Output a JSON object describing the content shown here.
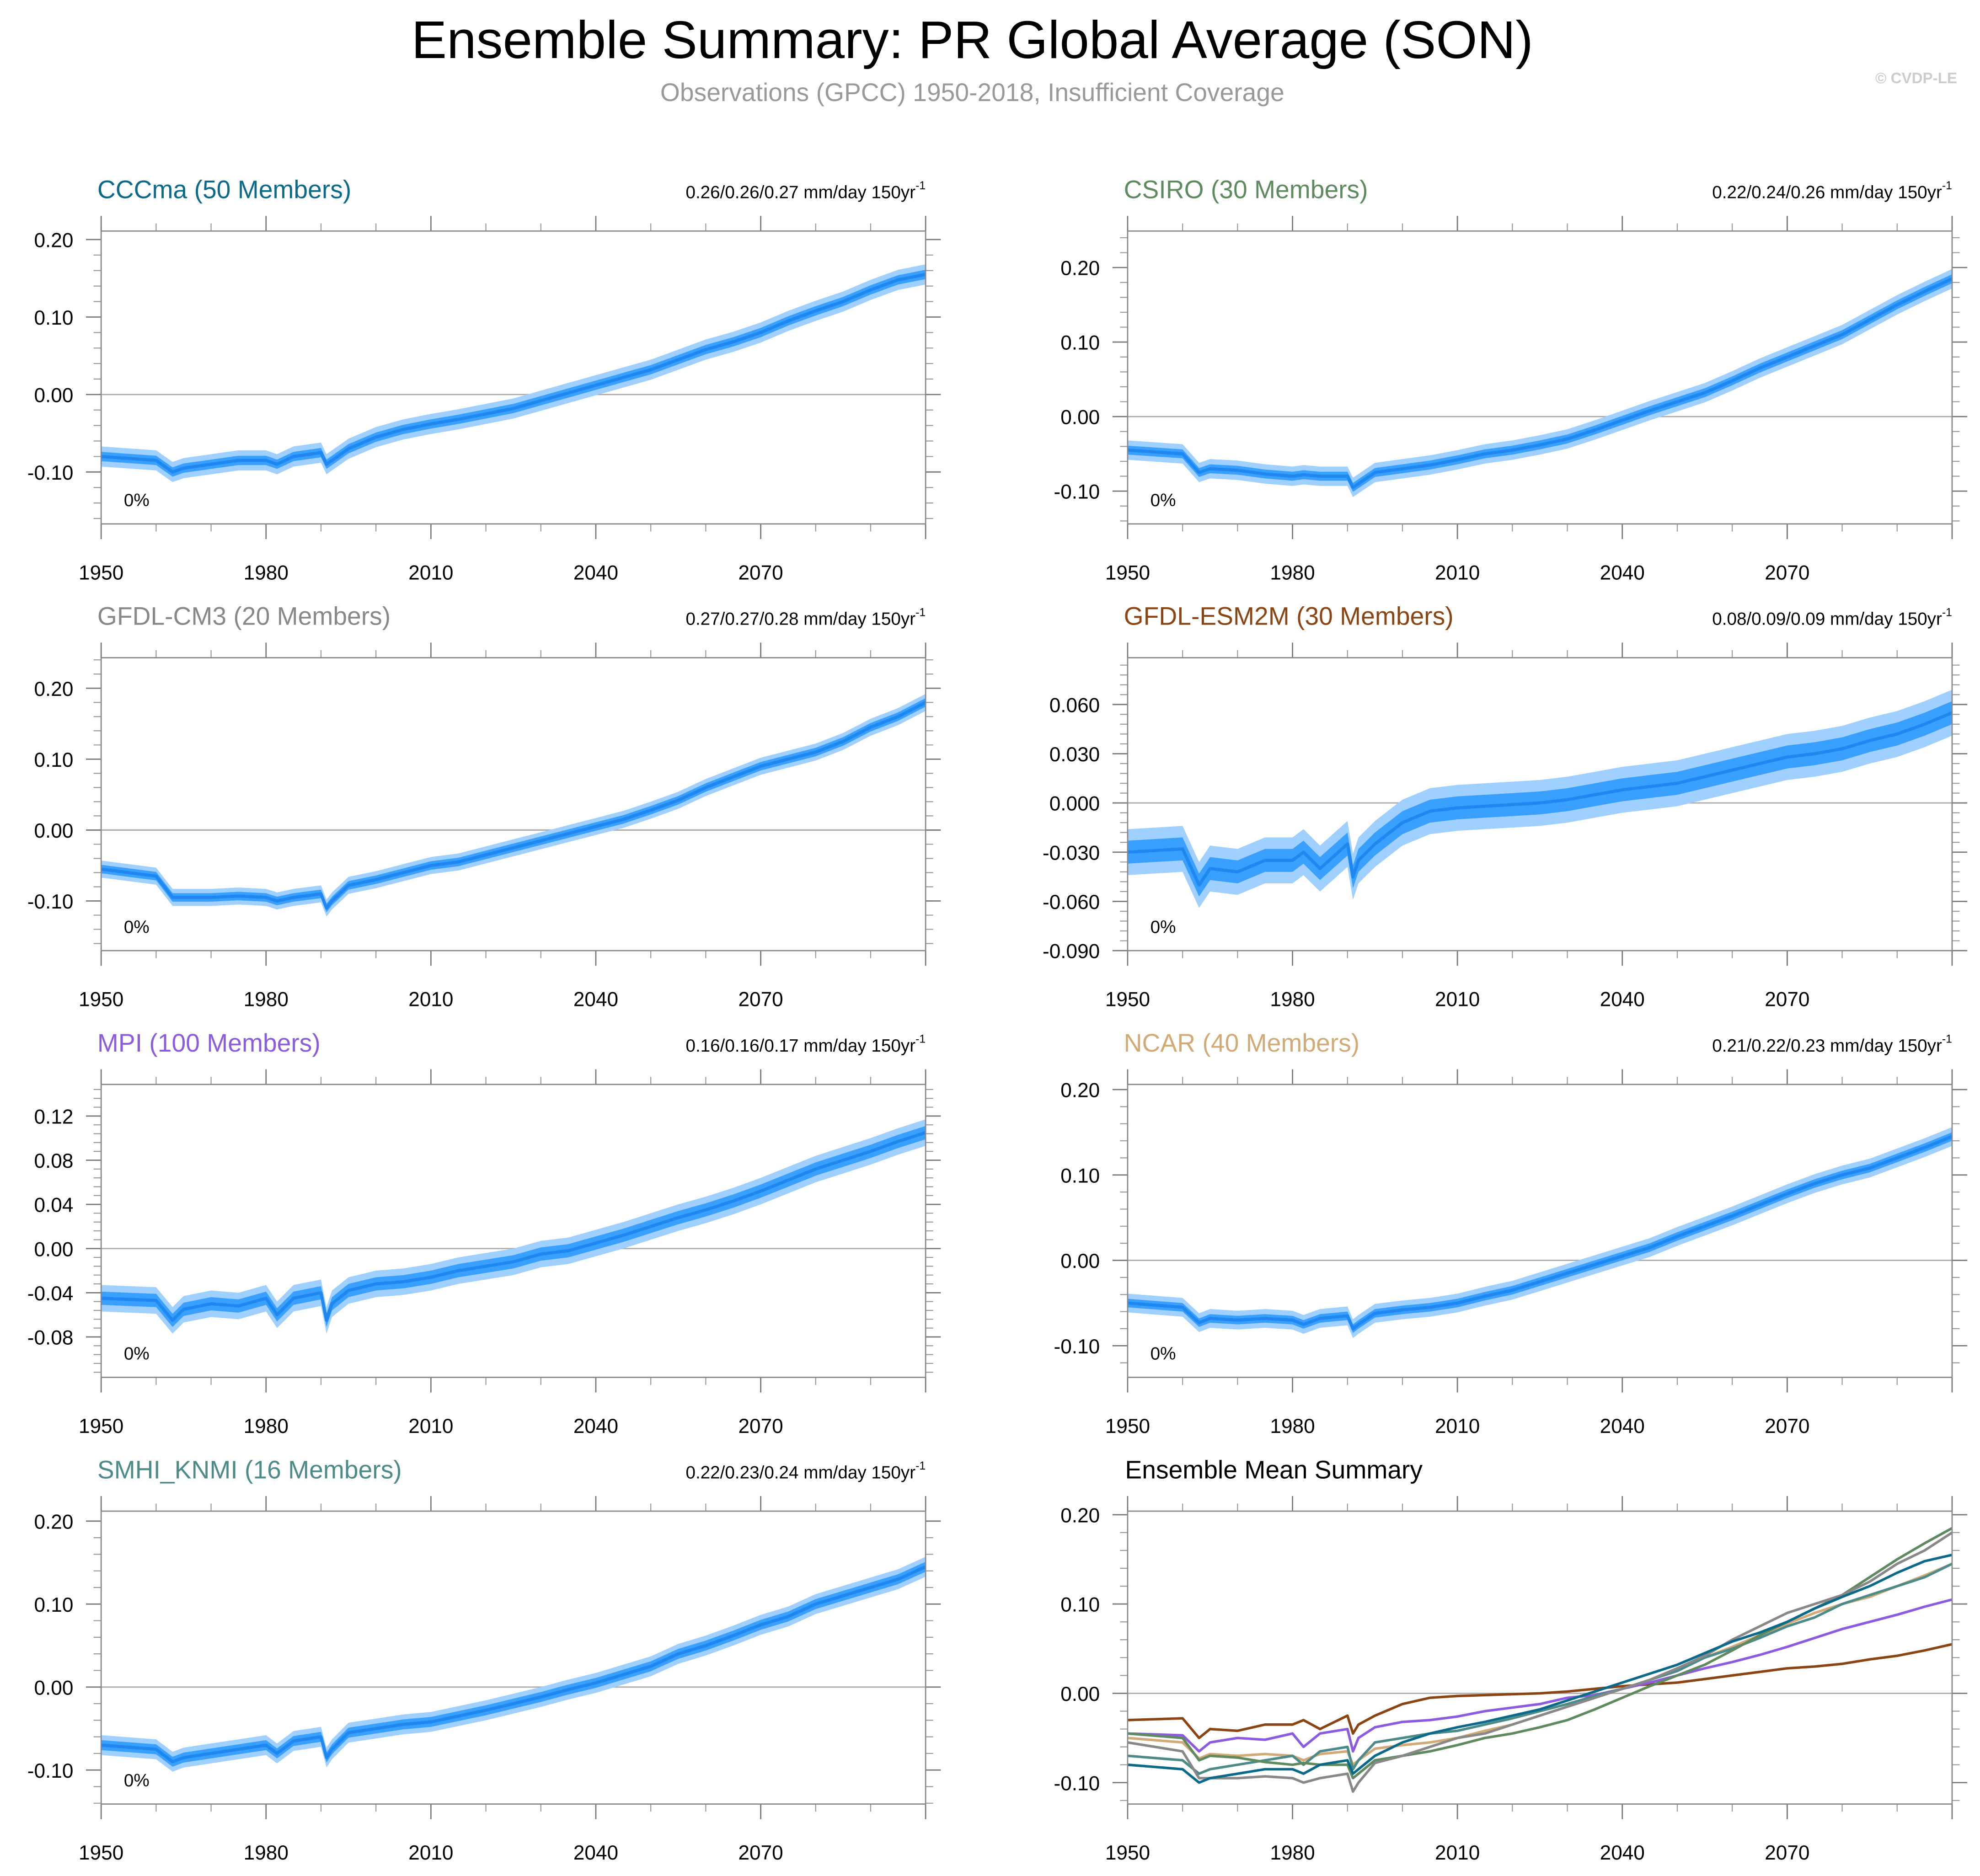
{
  "title": "Ensemble Summary: PR Global Average (SON)",
  "subtitle": "Observations (GPCC) 1950-2018, Insufficient Coverage",
  "watermark": "© CVDP-LE",
  "colors": {
    "outer_band": "#a0d0ff",
    "inner_band": "#3aa0ff",
    "mean_line": "#1e88f0",
    "zero_line": "#aaaaaa",
    "frame": "#888888"
  },
  "chart_data": {
    "type": "line",
    "x_tick_labels": [
      "1950",
      "1980",
      "2010",
      "2040",
      "2070"
    ],
    "xlim": [
      1950,
      2100
    ],
    "grid": false,
    "years": [
      1950,
      1960,
      1963,
      1965,
      1970,
      1975,
      1980,
      1982,
      1985,
      1990,
      1991,
      1992,
      1995,
      2000,
      2005,
      2010,
      2015,
      2020,
      2025,
      2030,
      2035,
      2040,
      2045,
      2050,
      2055,
      2060,
      2065,
      2070,
      2075,
      2080,
      2085,
      2090,
      2095,
      2100
    ],
    "panels": [
      {
        "title": "CCCma (50 Members)",
        "color": "#0b6a8a",
        "trend": "0.26/0.26/0.27 mm/day 150yr",
        "trend_exp": "-1",
        "pct": "0%",
        "ylim": [
          -0.167,
          0.211
        ],
        "y_ticks": [
          0.2,
          0.1,
          0.0,
          -0.1
        ],
        "y_tick_labels": [
          "0.20",
          "0.10",
          "0.00",
          "-0.10"
        ],
        "spread_inner": 0.006,
        "spread_outer": 0.013,
        "mean": [
          -0.08,
          -0.085,
          -0.1,
          -0.095,
          -0.09,
          -0.085,
          -0.085,
          -0.09,
          -0.08,
          -0.075,
          -0.09,
          -0.085,
          -0.07,
          -0.055,
          -0.045,
          -0.038,
          -0.032,
          -0.025,
          -0.018,
          -0.008,
          0.002,
          0.012,
          0.022,
          0.032,
          0.045,
          0.058,
          0.068,
          0.08,
          0.095,
          0.108,
          0.12,
          0.135,
          0.148,
          0.155
        ]
      },
      {
        "title": "CSIRO (30 Members)",
        "color": "#5f8a5f",
        "trend": "0.22/0.24/0.26 mm/day 150yr",
        "trend_exp": "-1",
        "pct": "0%",
        "ylim": [
          -0.144,
          0.249
        ],
        "y_ticks": [
          0.2,
          0.1,
          0.0,
          -0.1
        ],
        "y_tick_labels": [
          "0.20",
          "0.10",
          "0.00",
          "-0.10"
        ],
        "spread_inner": 0.006,
        "spread_outer": 0.013,
        "mean": [
          -0.045,
          -0.05,
          -0.075,
          -0.07,
          -0.072,
          -0.077,
          -0.08,
          -0.078,
          -0.08,
          -0.08,
          -0.095,
          -0.09,
          -0.075,
          -0.07,
          -0.065,
          -0.058,
          -0.05,
          -0.045,
          -0.038,
          -0.03,
          -0.018,
          -0.005,
          0.008,
          0.02,
          0.032,
          0.048,
          0.065,
          0.08,
          0.095,
          0.11,
          0.13,
          0.15,
          0.168,
          0.185
        ]
      },
      {
        "title": "GFDL-CM3 (20 Members)",
        "color": "#888888",
        "trend": "0.27/0.27/0.28 mm/day 150yr",
        "trend_exp": "-1",
        "pct": "0%",
        "ylim": [
          -0.17,
          0.243
        ],
        "y_ticks": [
          0.2,
          0.1,
          0.0,
          -0.1
        ],
        "y_tick_labels": [
          "0.20",
          "0.10",
          "0.00",
          "-0.10"
        ],
        "spread_inner": 0.006,
        "spread_outer": 0.012,
        "mean": [
          -0.055,
          -0.065,
          -0.095,
          -0.095,
          -0.095,
          -0.093,
          -0.095,
          -0.1,
          -0.095,
          -0.09,
          -0.11,
          -0.1,
          -0.078,
          -0.07,
          -0.06,
          -0.05,
          -0.045,
          -0.035,
          -0.025,
          -0.015,
          -0.005,
          0.005,
          0.015,
          0.028,
          0.042,
          0.06,
          0.075,
          0.09,
          0.1,
          0.11,
          0.125,
          0.145,
          0.16,
          0.18
        ]
      },
      {
        "title": "GFDL-ESM2M (30 Members)",
        "color": "#8b4513",
        "trend": "0.08/0.09/0.09 mm/day 150yr",
        "trend_exp": "-1",
        "pct": "0%",
        "ylim": [
          -0.09,
          0.0885
        ],
        "y_ticks": [
          0.06,
          0.03,
          0.0,
          -0.03,
          -0.06,
          -0.09
        ],
        "y_tick_labels": [
          "0.060",
          "0.030",
          "0.000",
          "-0.030",
          "-0.060",
          "-0.090"
        ],
        "spread_inner": 0.007,
        "spread_outer": 0.014,
        "mean": [
          -0.03,
          -0.028,
          -0.05,
          -0.04,
          -0.042,
          -0.035,
          -0.035,
          -0.03,
          -0.04,
          -0.025,
          -0.045,
          -0.035,
          -0.025,
          -0.012,
          -0.005,
          -0.003,
          -0.002,
          -0.001,
          0.0,
          0.002,
          0.005,
          0.008,
          0.01,
          0.012,
          0.016,
          0.02,
          0.024,
          0.028,
          0.03,
          0.033,
          0.038,
          0.042,
          0.048,
          0.055
        ]
      },
      {
        "title": "MPI (100 Members)",
        "color": "#8c5ce0",
        "trend": "0.16/0.16/0.17 mm/day 150yr",
        "trend_exp": "-1",
        "pct": "0%",
        "ylim": [
          -0.1166,
          0.1486
        ],
        "y_ticks": [
          0.12,
          0.08,
          0.04,
          0.0,
          -0.04,
          -0.08
        ],
        "y_tick_labels": [
          "0.12",
          "0.08",
          "0.04",
          "0.00",
          "-0.04",
          "-0.08"
        ],
        "spread_inner": 0.006,
        "spread_outer": 0.012,
        "mean": [
          -0.045,
          -0.047,
          -0.065,
          -0.055,
          -0.05,
          -0.052,
          -0.045,
          -0.06,
          -0.045,
          -0.04,
          -0.065,
          -0.05,
          -0.038,
          -0.032,
          -0.03,
          -0.026,
          -0.02,
          -0.016,
          -0.012,
          -0.005,
          -0.002,
          0.005,
          0.012,
          0.02,
          0.028,
          0.035,
          0.043,
          0.052,
          0.062,
          0.072,
          0.08,
          0.088,
          0.097,
          0.105
        ]
      },
      {
        "title": "NCAR (40 Members)",
        "color": "#d2aa78",
        "trend": "0.21/0.22/0.23 mm/day 150yr",
        "trend_exp": "-1",
        "pct": "0%",
        "ylim": [
          -0.137,
          0.206
        ],
        "y_ticks": [
          0.2,
          0.1,
          0.0,
          -0.1
        ],
        "y_tick_labels": [
          "0.20",
          "0.10",
          "0.00",
          "-0.10"
        ],
        "spread_inner": 0.005,
        "spread_outer": 0.011,
        "mean": [
          -0.05,
          -0.055,
          -0.073,
          -0.068,
          -0.07,
          -0.068,
          -0.07,
          -0.075,
          -0.068,
          -0.065,
          -0.08,
          -0.075,
          -0.062,
          -0.058,
          -0.055,
          -0.05,
          -0.042,
          -0.035,
          -0.025,
          -0.015,
          -0.005,
          0.005,
          0.015,
          0.028,
          0.04,
          0.052,
          0.065,
          0.078,
          0.09,
          0.1,
          0.108,
          0.12,
          0.132,
          0.145
        ]
      },
      {
        "title": "SMHI_KNMI (16 Members)",
        "color": "#4d8a8a",
        "trend": "0.22/0.23/0.24 mm/day 150yr",
        "trend_exp": "-1",
        "pct": "0%",
        "ylim": [
          -0.141,
          0.212
        ],
        "y_ticks": [
          0.2,
          0.1,
          0.0,
          -0.1
        ],
        "y_tick_labels": [
          "0.20",
          "0.10",
          "0.00",
          "-0.10"
        ],
        "spread_inner": 0.006,
        "spread_outer": 0.012,
        "mean": [
          -0.07,
          -0.075,
          -0.09,
          -0.085,
          -0.08,
          -0.075,
          -0.07,
          -0.08,
          -0.065,
          -0.06,
          -0.085,
          -0.075,
          -0.055,
          -0.05,
          -0.045,
          -0.042,
          -0.035,
          -0.028,
          -0.02,
          -0.012,
          -0.003,
          0.005,
          0.015,
          0.025,
          0.04,
          0.05,
          0.062,
          0.075,
          0.085,
          0.1,
          0.11,
          0.12,
          0.13,
          0.145
        ]
      }
    ],
    "summary": {
      "title": "Ensemble Mean Summary",
      "ylim": [
        -0.124,
        0.204
      ],
      "y_ticks": [
        0.2,
        0.1,
        0.0,
        -0.1
      ],
      "y_tick_labels": [
        "0.20",
        "0.10",
        "0.00",
        "-0.10"
      ]
    }
  }
}
